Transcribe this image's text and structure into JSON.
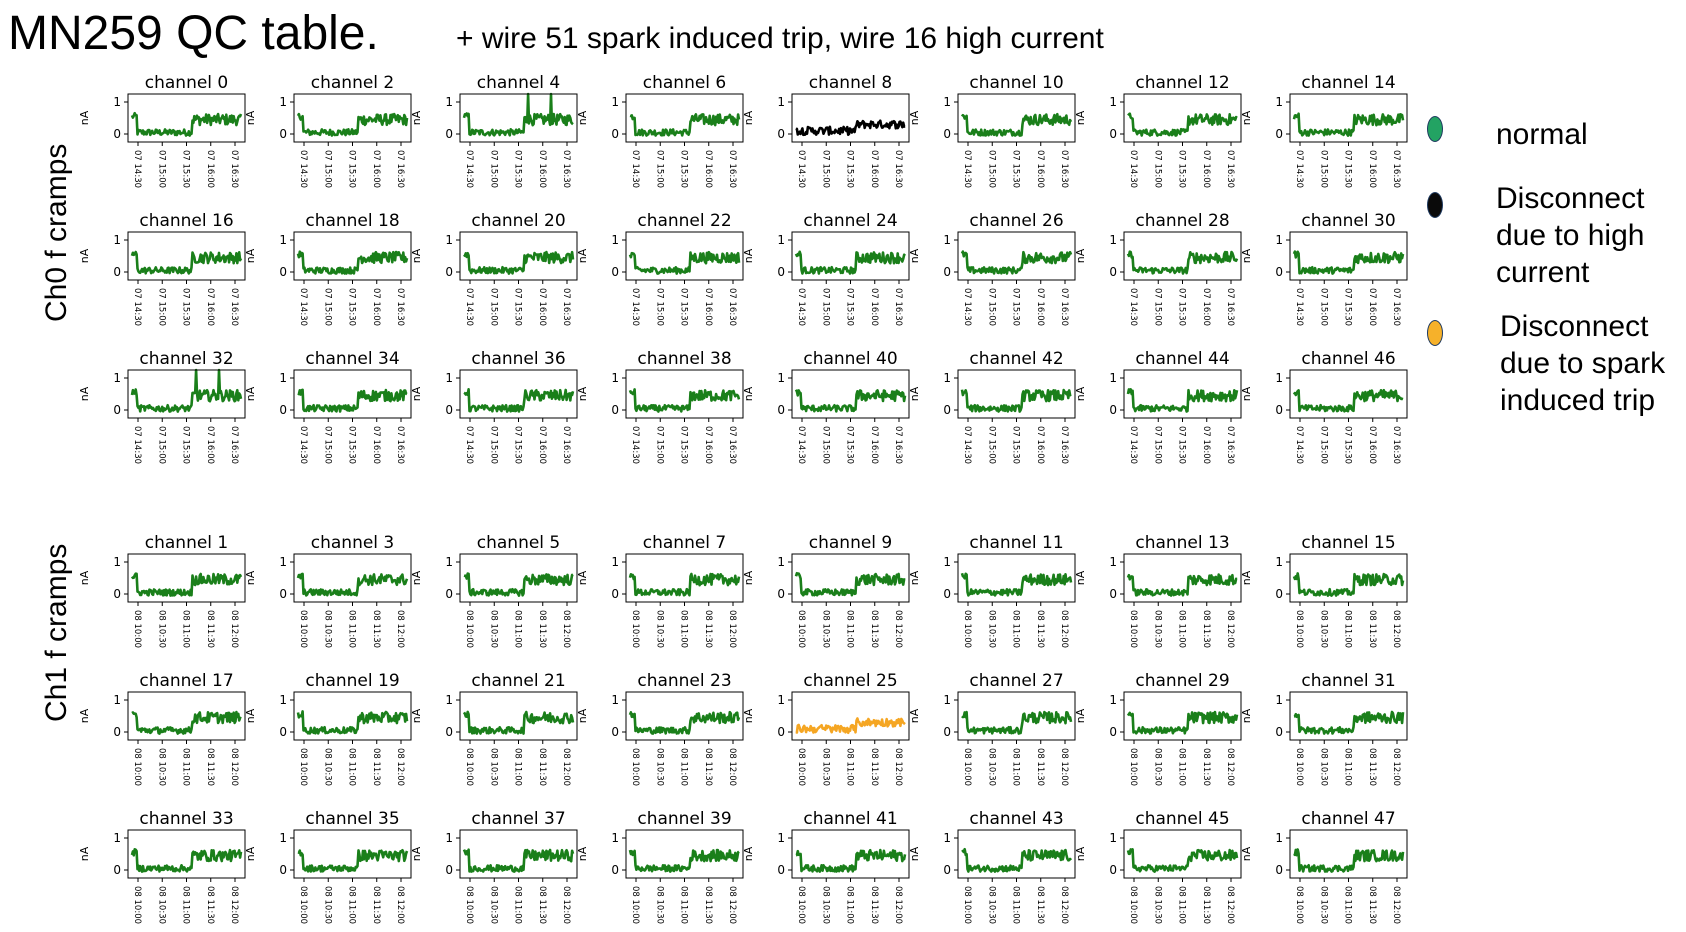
{
  "header": {
    "title": "MN259 QC table.",
    "subtitle": "+ wire 51 spark induced trip, wire 16 high current"
  },
  "group_labels": [
    "Ch0 f cramps",
    "Ch1 f cramps"
  ],
  "legend": {
    "items": [
      {
        "lines": [
          "normal"
        ],
        "color": "#23a363"
      },
      {
        "lines": [
          "Disconnect",
          "due to high",
          "current"
        ],
        "color": "#0a0a0a"
      },
      {
        "lines": [
          "Disconnect",
          "due to spark",
          "induced trip"
        ],
        "color": "#f6b12a"
      }
    ]
  },
  "colors": {
    "normal": "#1a7f1a",
    "high_current": "#000000",
    "spark_trip": "#f5a623"
  },
  "chart_data": {
    "type": "line",
    "ylabel": "nA",
    "yticks": [
      0,
      1
    ],
    "groups": [
      {
        "label": "Ch0 f cramps",
        "x_ticks": [
          "07 14:30",
          "07 15:00",
          "07 15:30",
          "07 16:00",
          "07 16:30"
        ],
        "channels": [
          {
            "title": "channel 0",
            "status": "normal"
          },
          {
            "title": "channel 2",
            "status": "normal"
          },
          {
            "title": "channel 4",
            "status": "normal",
            "spike": true
          },
          {
            "title": "channel 6",
            "status": "normal"
          },
          {
            "title": "channel 8",
            "status": "high_current"
          },
          {
            "title": "channel 10",
            "status": "normal"
          },
          {
            "title": "channel 12",
            "status": "normal"
          },
          {
            "title": "channel 14",
            "status": "normal"
          },
          {
            "title": "channel 16",
            "status": "normal"
          },
          {
            "title": "channel 18",
            "status": "normal"
          },
          {
            "title": "channel 20",
            "status": "normal"
          },
          {
            "title": "channel 22",
            "status": "normal"
          },
          {
            "title": "channel 24",
            "status": "normal"
          },
          {
            "title": "channel 26",
            "status": "normal"
          },
          {
            "title": "channel 28",
            "status": "normal"
          },
          {
            "title": "channel 30",
            "status": "normal"
          },
          {
            "title": "channel 32",
            "status": "normal",
            "spike": true
          },
          {
            "title": "channel 34",
            "status": "normal"
          },
          {
            "title": "channel 36",
            "status": "normal"
          },
          {
            "title": "channel 38",
            "status": "normal"
          },
          {
            "title": "channel 40",
            "status": "normal"
          },
          {
            "title": "channel 42",
            "status": "normal"
          },
          {
            "title": "channel 44",
            "status": "normal"
          },
          {
            "title": "channel 46",
            "status": "normal"
          }
        ]
      },
      {
        "label": "Ch1 f cramps",
        "x_ticks": [
          "08 10:00",
          "08 10:30",
          "08 11:00",
          "08 11:30",
          "08 12:00"
        ],
        "channels": [
          {
            "title": "channel 1",
            "status": "normal"
          },
          {
            "title": "channel 3",
            "status": "normal"
          },
          {
            "title": "channel 5",
            "status": "normal"
          },
          {
            "title": "channel 7",
            "status": "normal"
          },
          {
            "title": "channel 9",
            "status": "normal"
          },
          {
            "title": "channel 11",
            "status": "normal"
          },
          {
            "title": "channel 13",
            "status": "normal"
          },
          {
            "title": "channel 15",
            "status": "normal"
          },
          {
            "title": "channel 17",
            "status": "normal"
          },
          {
            "title": "channel 19",
            "status": "normal"
          },
          {
            "title": "channel 21",
            "status": "normal"
          },
          {
            "title": "channel 23",
            "status": "normal"
          },
          {
            "title": "channel 25",
            "status": "spark_trip"
          },
          {
            "title": "channel 27",
            "status": "normal"
          },
          {
            "title": "channel 29",
            "status": "normal"
          },
          {
            "title": "channel 31",
            "status": "normal"
          },
          {
            "title": "channel 33",
            "status": "normal"
          },
          {
            "title": "channel 35",
            "status": "normal"
          },
          {
            "title": "channel 37",
            "status": "normal"
          },
          {
            "title": "channel 39",
            "status": "normal"
          },
          {
            "title": "channel 41",
            "status": "normal"
          },
          {
            "title": "channel 43",
            "status": "normal"
          },
          {
            "title": "channel 45",
            "status": "normal"
          },
          {
            "title": "channel 47",
            "status": "normal"
          }
        ]
      }
    ]
  }
}
